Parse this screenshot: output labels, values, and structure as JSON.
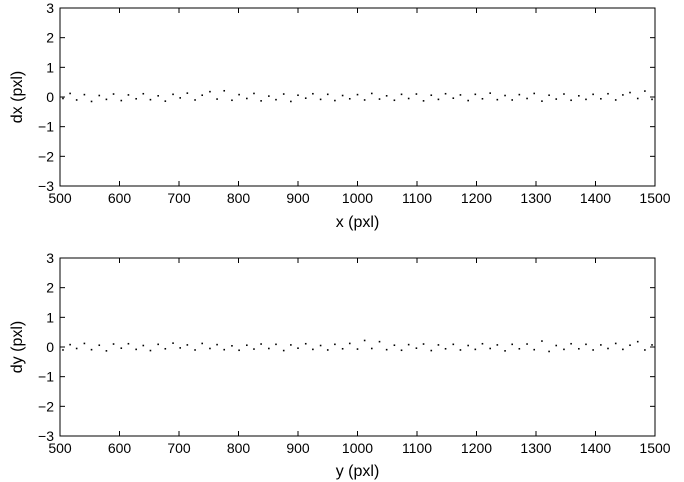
{
  "chart_data": [
    {
      "type": "scatter",
      "title": "",
      "xlabel": "x (pxl)",
      "ylabel": "dx (pxl)",
      "xlim": [
        500,
        1500
      ],
      "ylim": [
        -3,
        3
      ],
      "xticks": [
        500,
        600,
        700,
        800,
        900,
        1000,
        1100,
        1200,
        1300,
        1400,
        1500
      ],
      "yticks": [
        -3,
        -2,
        -1,
        0,
        1,
        2,
        3
      ],
      "ytick_labels": [
        "−3",
        "−2",
        "−1",
        "0",
        "1",
        "2",
        "3"
      ],
      "grid": false,
      "legend": "none",
      "marker_color": "#000000",
      "series": [
        {
          "x": [
            505,
            517,
            528,
            541,
            553,
            566,
            578,
            590,
            603,
            615,
            628,
            640,
            652,
            665,
            677,
            690,
            702,
            714,
            727,
            739,
            752,
            764,
            776,
            789,
            801,
            814,
            826,
            838,
            851,
            863,
            876,
            888,
            900,
            913,
            925,
            938,
            950,
            962,
            975,
            987,
            1000,
            1012,
            1024,
            1037,
            1049,
            1062,
            1074,
            1086,
            1099,
            1111,
            1124,
            1136,
            1148,
            1161,
            1173,
            1186,
            1198,
            1210,
            1223,
            1235,
            1248,
            1260,
            1272,
            1285,
            1297,
            1310,
            1322,
            1334,
            1347,
            1359,
            1372,
            1384,
            1396,
            1409,
            1421,
            1434,
            1446,
            1458,
            1471,
            1483,
            1495
          ],
          "y": [
            -0.05,
            0.12,
            -0.1,
            0.08,
            -0.15,
            0.05,
            -0.08,
            0.1,
            -0.12,
            0.07,
            -0.06,
            0.11,
            -0.09,
            0.04,
            -0.14,
            0.09,
            -0.03,
            0.13,
            -0.1,
            0.06,
            0.18,
            -0.07,
            0.21,
            -0.11,
            0.08,
            -0.05,
            0.12,
            -0.13,
            0.03,
            -0.09,
            0.1,
            -0.15,
            0.06,
            -0.04,
            0.11,
            -0.08,
            0.09,
            -0.12,
            0.05,
            -0.06,
            0.08,
            -0.1,
            0.12,
            -0.07,
            0.04,
            -0.11,
            0.09,
            -0.05,
            0.1,
            -0.13,
            0.06,
            -0.08,
            0.11,
            -0.04,
            0.07,
            -0.12,
            0.09,
            -0.06,
            0.13,
            -0.09,
            0.05,
            -0.1,
            0.08,
            -0.05,
            0.12,
            -0.14,
            0.06,
            -0.07,
            0.1,
            -0.11,
            0.04,
            -0.08,
            0.09,
            -0.06,
            0.11,
            -0.1,
            0.07,
            0.15,
            -0.05,
            0.2,
            -0.08
          ]
        }
      ]
    },
    {
      "type": "scatter",
      "title": "",
      "xlabel": "y (pxl)",
      "ylabel": "dy (pxl)",
      "xlim": [
        500,
        1500
      ],
      "ylim": [
        -3,
        3
      ],
      "xticks": [
        500,
        600,
        700,
        800,
        900,
        1000,
        1100,
        1200,
        1300,
        1400,
        1500
      ],
      "yticks": [
        -3,
        -2,
        -1,
        0,
        1,
        2,
        3
      ],
      "ytick_labels": [
        "−3",
        "−2",
        "−1",
        "0",
        "1",
        "2",
        "3"
      ],
      "grid": false,
      "legend": "none",
      "marker_color": "#000000",
      "series": [
        {
          "x": [
            505,
            517,
            528,
            541,
            553,
            566,
            578,
            590,
            603,
            615,
            628,
            640,
            652,
            665,
            677,
            690,
            702,
            714,
            727,
            739,
            752,
            764,
            776,
            789,
            801,
            814,
            826,
            838,
            851,
            863,
            876,
            888,
            900,
            913,
            925,
            938,
            950,
            962,
            975,
            987,
            1000,
            1012,
            1024,
            1037,
            1049,
            1062,
            1074,
            1086,
            1099,
            1111,
            1124,
            1136,
            1148,
            1161,
            1173,
            1186,
            1198,
            1210,
            1223,
            1235,
            1248,
            1260,
            1272,
            1285,
            1297,
            1310,
            1322,
            1334,
            1347,
            1359,
            1372,
            1384,
            1396,
            1409,
            1421,
            1434,
            1446,
            1458,
            1471,
            1483,
            1495
          ],
          "y": [
            -0.1,
            0.08,
            -0.05,
            0.12,
            -0.09,
            0.06,
            -0.13,
            0.1,
            -0.04,
            0.11,
            -0.08,
            0.05,
            -0.12,
            0.09,
            -0.06,
            0.13,
            -0.03,
            0.07,
            -0.1,
            0.12,
            -0.05,
            0.08,
            -0.09,
            0.04,
            -0.11,
            0.06,
            -0.07,
            0.1,
            -0.05,
            0.09,
            -0.12,
            0.07,
            -0.04,
            0.11,
            -0.08,
            0.05,
            -0.1,
            0.09,
            -0.06,
            0.12,
            -0.07,
            0.22,
            -0.05,
            0.18,
            -0.09,
            0.06,
            -0.11,
            0.08,
            -0.04,
            0.1,
            -0.12,
            0.07,
            -0.06,
            0.09,
            -0.1,
            0.05,
            -0.08,
            0.11,
            -0.05,
            0.07,
            -0.13,
            0.09,
            -0.06,
            0.1,
            -0.09,
            0.2,
            -0.15,
            0.05,
            -0.08,
            0.11,
            -0.06,
            0.09,
            -0.1,
            0.07,
            -0.05,
            0.12,
            -0.08,
            0.06,
            0.18,
            -0.1,
            0.07
          ]
        }
      ]
    }
  ]
}
